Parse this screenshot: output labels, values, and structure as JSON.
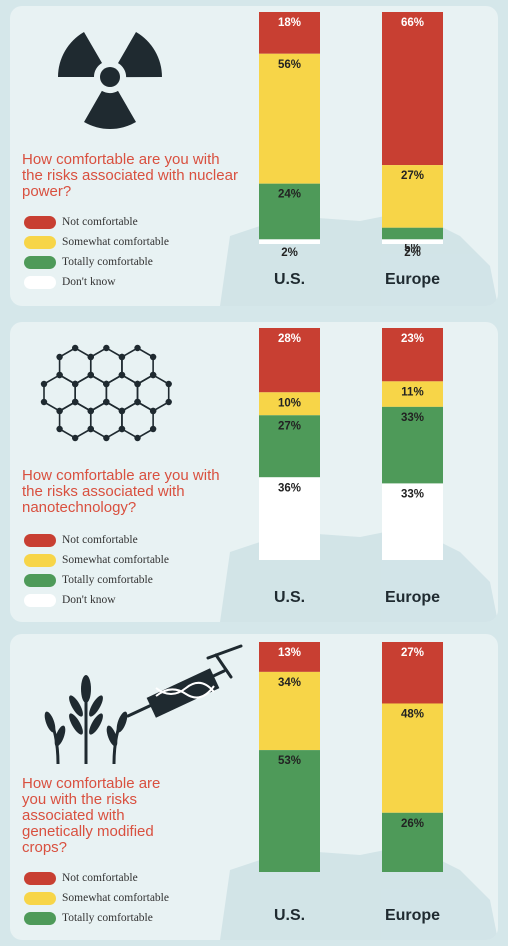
{
  "legend": [
    {
      "label": "Not comfortable",
      "color": "#c83f32"
    },
    {
      "label": "Somewhat comfortable",
      "color": "#f7d548"
    },
    {
      "label": "Totally comfortable",
      "color": "#4e9a59"
    },
    {
      "label": "Don't know",
      "color": "#ffffff"
    }
  ],
  "panels": [
    {
      "question": "How comfortable are you with the risks associated with nuclear power?",
      "icon": "radiation-icon"
    },
    {
      "question": "How comfortable are you with the risks associated with nanotechnology?",
      "icon": "hexagon-lattice-icon"
    },
    {
      "question": "How comfortable are you with the risks associated with genetically modified crops?",
      "icon": "wheat-syringe-icon"
    }
  ],
  "chart_data": [
    {
      "type": "bar",
      "stacked": true,
      "categories": [
        "U.S.",
        "Europe"
      ],
      "series": [
        {
          "name": "Not comfortable",
          "values": [
            18,
            66
          ],
          "labels": [
            "18%",
            "66%"
          ]
        },
        {
          "name": "Somewhat comfortable",
          "values": [
            56,
            27
          ],
          "labels": [
            "56%",
            "27%"
          ]
        },
        {
          "name": "Totally comfortable",
          "values": [
            24,
            5
          ],
          "labels": [
            "24%",
            "5%"
          ]
        },
        {
          "name": "Don't know",
          "values": [
            2,
            2
          ],
          "labels": [
            "2%",
            "2%"
          ]
        }
      ]
    },
    {
      "type": "bar",
      "stacked": true,
      "categories": [
        "U.S.",
        "Europe"
      ],
      "series": [
        {
          "name": "Not comfortable",
          "values": [
            28,
            23
          ],
          "labels": [
            "28%",
            "23%"
          ]
        },
        {
          "name": "Somewhat comfortable",
          "values": [
            10,
            11
          ],
          "labels": [
            "10%",
            "11%"
          ]
        },
        {
          "name": "Totally comfortable",
          "values": [
            27,
            33
          ],
          "labels": [
            "27%",
            "33%"
          ]
        },
        {
          "name": "Don't know",
          "values": [
            36,
            33
          ],
          "labels": [
            "36%",
            "33%"
          ]
        }
      ]
    },
    {
      "type": "bar",
      "stacked": true,
      "categories": [
        "U.S.",
        "Europe"
      ],
      "series": [
        {
          "name": "Not comfortable",
          "values": [
            13,
            27
          ],
          "labels": [
            "13%",
            "27%"
          ]
        },
        {
          "name": "Somewhat comfortable",
          "values": [
            34,
            48
          ],
          "labels": [
            "34%",
            "48%"
          ]
        },
        {
          "name": "Totally comfortable",
          "values": [
            53,
            26
          ],
          "labels": [
            "53%",
            "26%"
          ]
        }
      ]
    }
  ]
}
